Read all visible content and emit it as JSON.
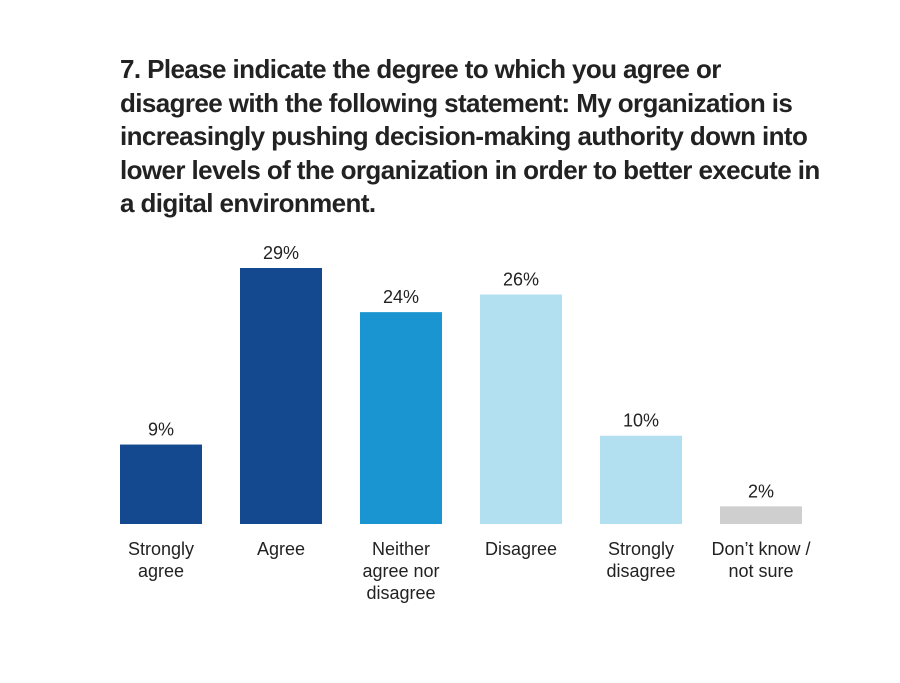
{
  "chart_data": {
    "type": "bar",
    "title": "7. Please indicate the degree to which you agree or disagree with the following statement: My organization is increasingly pushing decision-making authority down into lower levels of the organization in order to better execute in a digital environment.",
    "xlabel": "",
    "ylabel": "",
    "ylim": [
      0,
      29
    ],
    "grid": false,
    "categories": [
      [
        "Strongly",
        "agree"
      ],
      [
        "Agree"
      ],
      [
        "Neither",
        "agree nor",
        "disagree"
      ],
      [
        "Disagree"
      ],
      [
        "Strongly",
        "disagree"
      ],
      [
        "Don’t know /",
        "not sure"
      ]
    ],
    "values": [
      9,
      29,
      24,
      26,
      10,
      2
    ],
    "value_labels": [
      "9%",
      "29%",
      "24%",
      "26%",
      "10%",
      "2%"
    ],
    "colors": [
      "#15498f",
      "#15498f",
      "#1b95d2",
      "#b3e0f1",
      "#b3e0f1",
      "#cfcfcf"
    ]
  }
}
